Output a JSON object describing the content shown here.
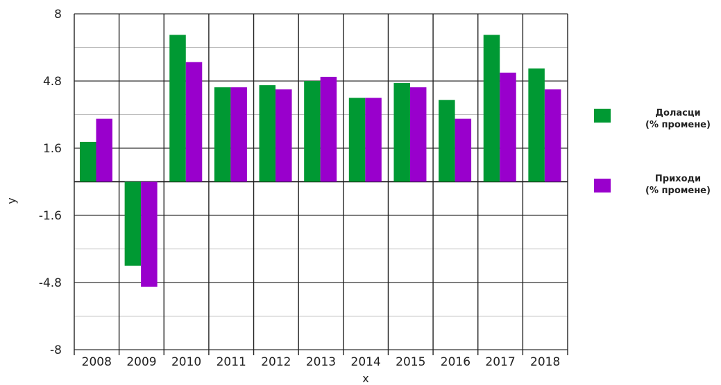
{
  "chart_data": {
    "type": "bar",
    "categories": [
      "2008",
      "2009",
      "2010",
      "2011",
      "2012",
      "2013",
      "2014",
      "2015",
      "2016",
      "2017",
      "2018"
    ],
    "series": [
      {
        "name": "Доласци (% промене)",
        "legend_line1": "Доласци",
        "legend_line2": "(% промене)",
        "color": "#009933",
        "values": [
          1.9,
          -4.0,
          7.0,
          4.5,
          4.6,
          4.8,
          4.0,
          4.7,
          3.9,
          7.0,
          5.4
        ]
      },
      {
        "name": "Приходи (% промене)",
        "legend_line1": "Приходи",
        "legend_line2": "(% промене)",
        "color": "#9900cc",
        "values": [
          3.0,
          -5.0,
          5.7,
          4.5,
          4.4,
          5.0,
          4.0,
          4.5,
          3.0,
          5.2,
          4.4
        ]
      }
    ],
    "xlabel": "x",
    "ylabel": "y",
    "ylim": [
      -8,
      8
    ],
    "yticks": [
      8,
      4.8,
      1.6,
      -1.6,
      -4.8,
      -8
    ],
    "grid": true,
    "legend_position": "right"
  }
}
